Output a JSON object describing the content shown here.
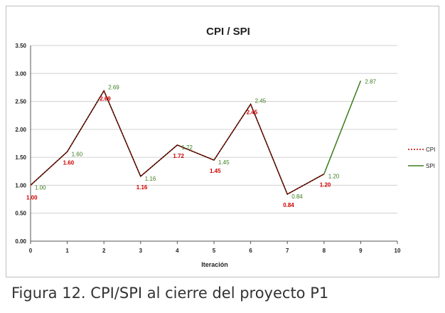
{
  "caption": "Figura 12. CPI/SPI al cierre del proyecto P1",
  "colors": {
    "cpi": "#cc0000",
    "spi": "#3a7d1e",
    "grid": "#d0d0d0",
    "axis": "#555555",
    "text": "#222222"
  },
  "chart_data": {
    "type": "line",
    "title": "CPI / SPI",
    "xlabel": "Iteración",
    "ylabel": "",
    "xlim": [
      0,
      10
    ],
    "ylim": [
      0,
      3.5
    ],
    "x_ticks": [
      "0",
      "1",
      "2",
      "3",
      "4",
      "5",
      "6",
      "7",
      "8",
      "9",
      "10"
    ],
    "y_ticks": [
      "0.00",
      "0.50",
      "1.00",
      "1.50",
      "2.00",
      "2.50",
      "3.00",
      "3.50"
    ],
    "grid": true,
    "legend_position": "right",
    "series": [
      {
        "name": "CPI",
        "style": "dashed",
        "x": [
          0,
          1,
          2,
          3,
          4,
          5,
          6,
          7,
          8
        ],
        "values": [
          1.0,
          1.6,
          2.69,
          1.16,
          1.72,
          1.45,
          2.45,
          0.84,
          1.2
        ],
        "labels": [
          "1.00",
          "1.60",
          "2.69",
          "1.16",
          "1.72",
          "1.45",
          "2.45",
          "0.84",
          "1.20"
        ]
      },
      {
        "name": "SPI",
        "style": "solid",
        "x": [
          0,
          1,
          2,
          3,
          4,
          5,
          6,
          7,
          8,
          9
        ],
        "values": [
          1.0,
          1.6,
          2.69,
          1.16,
          1.72,
          1.45,
          2.45,
          0.84,
          1.2,
          2.87
        ],
        "labels": [
          "1.00",
          "1.60",
          "2.69",
          "1.16",
          "1.72",
          "1.45",
          "2.45",
          "0.84",
          "1.20",
          "2.87"
        ]
      }
    ]
  }
}
